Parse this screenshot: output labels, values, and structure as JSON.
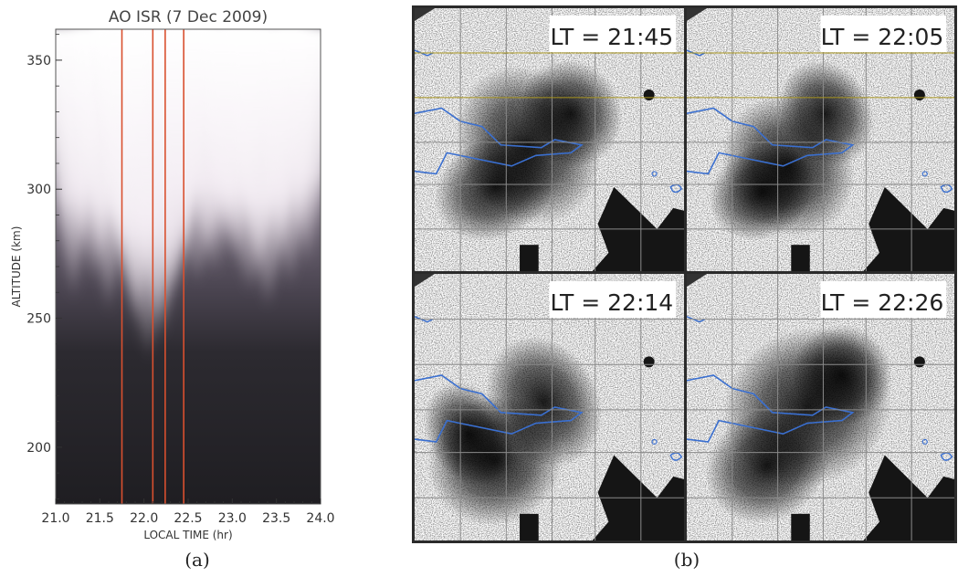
{
  "chart_data": [
    {
      "type": "heatmap",
      "title": "AO ISR (7 Dec 2009)",
      "xlabel": "LOCAL TIME (hr)",
      "ylabel": "ALTITUDE (km)",
      "xlim": [
        21.0,
        24.0
      ],
      "ylim": [
        178,
        362
      ],
      "x_ticks": [
        "21.0",
        "21.5",
        "22.0",
        "22.5",
        "23.0",
        "23.5",
        "24.0"
      ],
      "x_tick_values": [
        21.0,
        21.5,
        22.0,
        22.5,
        23.0,
        23.5,
        24.0
      ],
      "y_ticks": [
        "200",
        "250",
        "300",
        "350"
      ],
      "y_tick_values": [
        200,
        250,
        300,
        350
      ],
      "marker_lines_x": [
        21.75,
        22.1,
        22.24,
        22.45
      ],
      "marker_color": "#d9502f",
      "plume_centers_x": [
        21.2,
        21.42,
        21.6,
        21.72,
        21.9,
        22.05,
        22.2,
        22.35,
        22.6,
        22.8,
        23.0,
        23.2,
        23.4,
        23.65,
        23.85
      ],
      "caption": "(a)"
    },
    {
      "type": "image-grid",
      "panels": [
        {
          "label": "LT = 21:45"
        },
        {
          "label": "LT = 22:05"
        },
        {
          "label": "LT = 22:14"
        },
        {
          "label": "LT = 22:26"
        }
      ],
      "coastline_color": "#3a6fd0",
      "caption": "(b)"
    }
  ]
}
